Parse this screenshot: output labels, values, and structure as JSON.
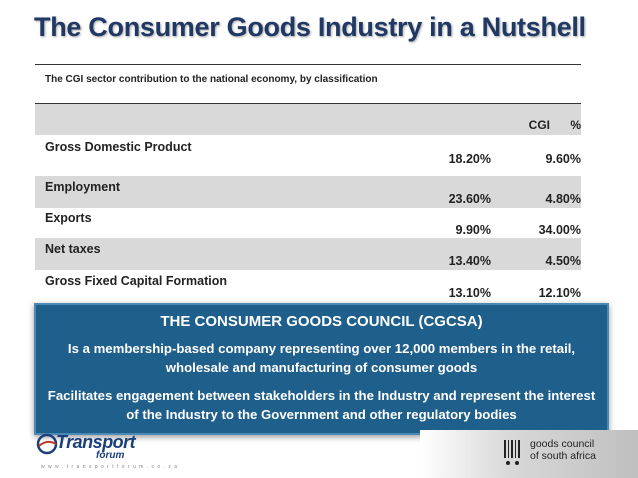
{
  "title": "The Consumer Goods Industry in a Nutshell",
  "subtitle": "The CGI sector contribution to the national economy, by classification",
  "table": {
    "headers": [
      "CGI",
      "%"
    ],
    "rows": [
      {
        "label": "Gross Domestic Product",
        "cgi": "18.20%",
        "pct": "9.60%"
      },
      {
        "label": "Employment",
        "cgi": "23.60%",
        "pct": "4.80%"
      },
      {
        "label": "Exports",
        "cgi": "9.90%",
        "pct": "34.00%"
      },
      {
        "label": "Net taxes",
        "cgi": "13.40%",
        "pct": "4.50%"
      },
      {
        "label": "Gross Fixed Capital Formation",
        "cgi": "13.10%",
        "pct": "12.10%"
      }
    ]
  },
  "callout": {
    "title": "THE CONSUMER GOODS COUNCIL (CGCSA)",
    "p1": "Is a membership-based company representing over 12,000 members in the retail, wholesale and manufacturing of consumer goods",
    "p2": "Facilitates engagement between stakeholders in the Industry and represent the interest of the Industry to the Government and other regulatory bodies"
  },
  "logos": {
    "left_main": "Transport",
    "left_sub": "forum",
    "left_url": "w w w . t r a n s p o r t f o r u m . c o . z a",
    "right_line1": "goods council",
    "right_line2": "of south africa"
  },
  "colors": {
    "title": "#1f3864",
    "callout_bg": "#1f5f8b",
    "row_shade": "#d9d9d9"
  }
}
